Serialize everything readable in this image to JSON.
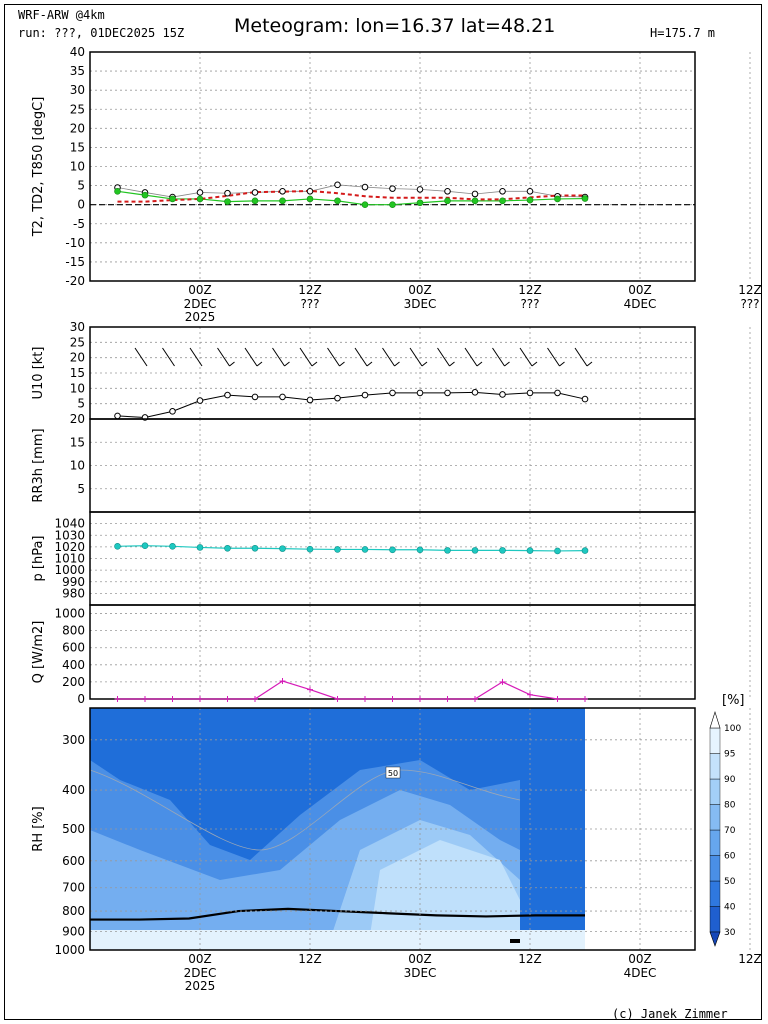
{
  "header": {
    "model": "WRF-ARW @4km",
    "run": "run: ???, 01DEC2025 15Z",
    "title": "Meteogram: lon=16.37 lat=48.21",
    "height": "H=175.7 m"
  },
  "footer": {
    "credit": "(c) Janek Zimmer"
  },
  "colors": {
    "t2": "#000000",
    "t850": "#d41a1a",
    "td2": "#22c522",
    "wind": "#000000",
    "pressure": "#1ec8c0",
    "radiation": "#d61bb8",
    "grid": "#999999"
  },
  "chart_data": [
    {
      "id": "temperature",
      "type": "line",
      "ylabel": "T2, TD2, T850 [degC]",
      "ylim": [
        -20,
        40
      ],
      "yticks": [
        -20,
        -15,
        -10,
        -5,
        0,
        5,
        10,
        15,
        20,
        25,
        30,
        35,
        40
      ],
      "x_hours": [
        0,
        3,
        6,
        9,
        12,
        15,
        18,
        21,
        24,
        27,
        30,
        33,
        36,
        39,
        42,
        45,
        48,
        51
      ],
      "series": [
        {
          "key": "t2",
          "values": [
            4.5,
            3.2,
            2.0,
            3.2,
            3.0,
            3.2,
            3.5,
            3.5,
            5.2,
            4.6,
            4.2,
            4.0,
            3.5,
            2.8,
            3.5,
            3.5,
            2.2,
            2.0
          ]
        },
        {
          "key": "td2",
          "values": [
            3.5,
            2.5,
            1.5,
            1.5,
            0.8,
            1.0,
            1.0,
            1.5,
            1.0,
            0.0,
            0.0,
            0.5,
            1.0,
            1.0,
            1.0,
            1.2,
            1.5,
            1.6
          ]
        },
        {
          "key": "t850",
          "values": [
            0.8,
            0.8,
            1.2,
            1.5,
            2.3,
            3.3,
            3.4,
            3.6,
            3.0,
            2.2,
            1.8,
            1.8,
            1.8,
            1.4,
            1.4,
            1.9,
            2.4,
            2.4
          ]
        }
      ]
    },
    {
      "id": "wind",
      "type": "line",
      "ylabel": "U10 [kt]",
      "ylim": [
        0,
        30
      ],
      "yticks": [
        5,
        10,
        15,
        20,
        25,
        30
      ],
      "x_hours": [
        0,
        3,
        6,
        9,
        12,
        15,
        18,
        21,
        24,
        27,
        30,
        33,
        36,
        39,
        42,
        45,
        48,
        51
      ],
      "values": [
        1.0,
        0.5,
        2.5,
        6.0,
        7.8,
        7.2,
        7.2,
        6.2,
        6.8,
        7.8,
        8.5,
        8.5,
        8.5,
        8.7,
        8.0,
        8.5,
        8.5,
        6.5
      ]
    },
    {
      "id": "precipitation",
      "type": "bar",
      "ylabel": "RR3h [mm]",
      "ylim": [
        0,
        20
      ],
      "yticks": [
        5,
        10,
        15,
        20
      ],
      "values": []
    },
    {
      "id": "pressure",
      "type": "line",
      "ylabel": "p [hPa]",
      "ylim": [
        970,
        1050
      ],
      "yticks": [
        980,
        990,
        1000,
        1010,
        1020,
        1030,
        1040
      ],
      "x_hours": [
        0,
        3,
        6,
        9,
        12,
        15,
        18,
        21,
        24,
        27,
        30,
        33,
        36,
        39,
        42,
        45,
        48,
        51
      ],
      "values": [
        1020.5,
        1021,
        1020.5,
        1019.5,
        1018.8,
        1018.8,
        1018.5,
        1018.0,
        1017.8,
        1017.8,
        1017.5,
        1017.5,
        1017.0,
        1017.0,
        1017.0,
        1016.8,
        1016.5,
        1016.8
      ]
    },
    {
      "id": "radiation",
      "type": "line",
      "ylabel": "Q [W/m2]",
      "ylim": [
        0,
        1100
      ],
      "yticks": [
        0,
        200,
        400,
        600,
        800,
        1000
      ],
      "x_hours": [
        0,
        3,
        6,
        9,
        12,
        15,
        18,
        21,
        24,
        27,
        30,
        33,
        36,
        39,
        42,
        45,
        48,
        51
      ],
      "values": [
        0,
        0,
        0,
        0,
        0,
        0,
        210,
        110,
        0,
        0,
        0,
        0,
        0,
        0,
        200,
        50,
        0,
        0
      ]
    },
    {
      "id": "humidity",
      "type": "heatmap",
      "ylabel": "RH [%]",
      "ylim": [
        1000,
        250
      ],
      "yticks": [
        300,
        400,
        500,
        600,
        700,
        800,
        900,
        1000
      ],
      "contour_label": "50",
      "colorbar_title": "[%]",
      "colorbar_levels": [
        30,
        40,
        50,
        60,
        70,
        80,
        90,
        95,
        100
      ],
      "boundary_layer_hpa": [
        840,
        840,
        835,
        800,
        790,
        800,
        810,
        820,
        825,
        820,
        820
      ]
    }
  ],
  "time_axis": {
    "hours_range": [
      -3,
      63
    ],
    "ticks": [
      {
        "h": 9,
        "label": "00Z"
      },
      {
        "h": 21,
        "label": "12Z"
      },
      {
        "h": 33,
        "label": "00Z"
      },
      {
        "h": 45,
        "label": "12Z"
      },
      {
        "h": 57,
        "label": "00Z"
      },
      {
        "h": 69,
        "label": "12Z"
      }
    ],
    "top_labels": [
      {
        "h": 9,
        "l1": "00Z",
        "l2": "2DEC",
        "l3": "2025"
      },
      {
        "h": 21,
        "l1": "12Z",
        "l2": "???",
        "l3": ""
      },
      {
        "h": 33,
        "l1": "00Z",
        "l2": "3DEC",
        "l3": ""
      },
      {
        "h": 45,
        "l1": "12Z",
        "l2": "???",
        "l3": ""
      },
      {
        "h": 57,
        "l1": "00Z",
        "l2": "4DEC",
        "l3": ""
      },
      {
        "h": 69,
        "l1": "12Z",
        "l2": "???",
        "l3": ""
      }
    ],
    "bottom_labels": [
      {
        "h": 9,
        "l1": "00Z",
        "l2": "2DEC",
        "l3": "2025"
      },
      {
        "h": 21,
        "l1": "12Z",
        "l2": "",
        "l3": ""
      },
      {
        "h": 33,
        "l1": "00Z",
        "l2": "3DEC",
        "l3": ""
      },
      {
        "h": 45,
        "l1": "12Z",
        "l2": "",
        "l3": ""
      },
      {
        "h": 57,
        "l1": "00Z",
        "l2": "4DEC",
        "l3": ""
      },
      {
        "h": 69,
        "l1": "12Z",
        "l2": "",
        "l3": ""
      }
    ]
  }
}
